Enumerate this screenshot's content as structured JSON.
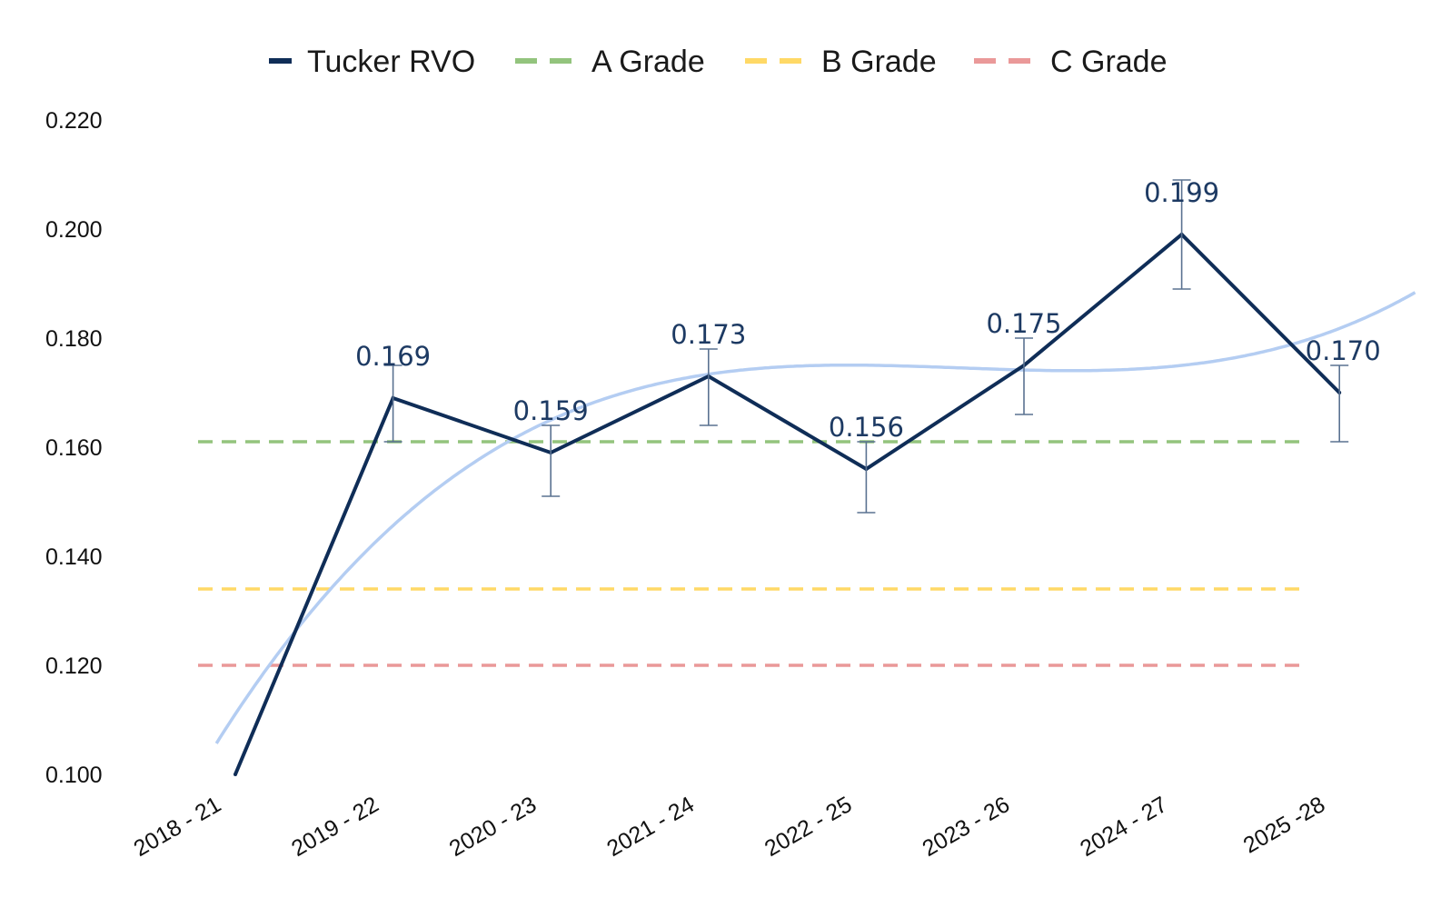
{
  "chart_data": {
    "type": "line",
    "categories": [
      "2018 - 21",
      "2019 - 22",
      "2020 - 23",
      "2021 - 24",
      "2022 - 25",
      "2023 - 26",
      "2024 - 27",
      "2025 -28"
    ],
    "series": [
      {
        "name": "Tucker RVO",
        "values": [
          0.1,
          0.169,
          0.159,
          0.173,
          0.156,
          0.175,
          0.199,
          0.17
        ],
        "error_bars": [
          null,
          [
            0.161,
            0.175
          ],
          [
            0.151,
            0.164
          ],
          [
            0.164,
            0.178
          ],
          [
            0.148,
            0.161
          ],
          [
            0.166,
            0.18
          ],
          [
            0.189,
            0.209
          ],
          [
            0.161,
            0.175
          ]
        ],
        "data_labels": [
          null,
          "0.169",
          "0.159",
          "0.173",
          "0.156",
          "0.175",
          "0.199",
          "0.170"
        ],
        "color": "#0f2d57"
      }
    ],
    "reference_lines": [
      {
        "name": "A Grade",
        "value": 0.161,
        "color": "#93c47d"
      },
      {
        "name": "B Grade",
        "value": 0.134,
        "color": "#ffd966"
      },
      {
        "name": "C Grade",
        "value": 0.12,
        "color": "#ea9999"
      }
    ],
    "trendline": {
      "type": "polynomial",
      "color": "#b4cdf2"
    },
    "yticks": [
      "0.220",
      "0.200",
      "0.180",
      "0.160",
      "0.140",
      "0.120",
      "0.100"
    ],
    "ylim": [
      0.1,
      0.22
    ],
    "legend_position": "top-center",
    "grid": false,
    "colors": {
      "series": "#0f2d57",
      "error_bar": "#5a7291",
      "label": "#1d3a63",
      "trend": "#b4cdf2"
    }
  }
}
